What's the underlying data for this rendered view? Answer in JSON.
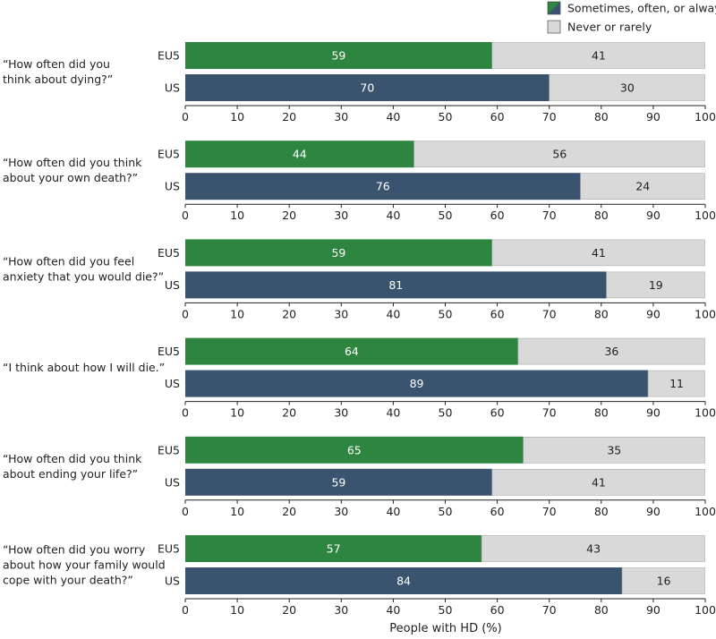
{
  "chart_data": {
    "type": "bar",
    "orientation": "horizontal",
    "stacked": true,
    "xlabel": "People with HD (%)",
    "xlim": [
      0,
      100
    ],
    "xticks": [
      0,
      10,
      20,
      30,
      40,
      50,
      60,
      70,
      80,
      90,
      100
    ],
    "legend": {
      "position": "top-right",
      "entries": [
        {
          "label": "Sometimes, often, or always",
          "colors": [
            "#2e8540",
            "#3a5470"
          ]
        },
        {
          "label": "Never or rarely",
          "color": "#d9d9d9"
        }
      ]
    },
    "colors": {
      "EU5": "#2e8540",
      "US": "#3a5470",
      "remainder": "#d9d9d9",
      "remainder_edge": "#aaaaaa"
    },
    "panels": [
      {
        "question_lines": [
          "“How often did you",
          "think about dying?”"
        ],
        "bars": [
          {
            "group": "EU5",
            "yes": 59,
            "no": 41
          },
          {
            "group": "US",
            "yes": 70,
            "no": 30
          }
        ]
      },
      {
        "question_lines": [
          "“How often did you think",
          "about your own death?”"
        ],
        "bars": [
          {
            "group": "EU5",
            "yes": 44,
            "no": 56
          },
          {
            "group": "US",
            "yes": 76,
            "no": 24
          }
        ]
      },
      {
        "question_lines": [
          "“How often did you feel",
          "anxiety that you would die?”"
        ],
        "bars": [
          {
            "group": "EU5",
            "yes": 59,
            "no": 41
          },
          {
            "group": "US",
            "yes": 81,
            "no": 19
          }
        ]
      },
      {
        "question_lines": [
          "“I think about how I will die.”"
        ],
        "bars": [
          {
            "group": "EU5",
            "yes": 64,
            "no": 36
          },
          {
            "group": "US",
            "yes": 89,
            "no": 11
          }
        ]
      },
      {
        "question_lines": [
          "“How often did you think",
          "about ending your life?”"
        ],
        "bars": [
          {
            "group": "EU5",
            "yes": 65,
            "no": 35
          },
          {
            "group": "US",
            "yes": 59,
            "no": 41
          }
        ]
      },
      {
        "question_lines": [
          "“How often did you worry",
          "about how your family would",
          "cope with your death?”"
        ],
        "bars": [
          {
            "group": "EU5",
            "yes": 57,
            "no": 43
          },
          {
            "group": "US",
            "yes": 84,
            "no": 16
          }
        ]
      }
    ]
  }
}
